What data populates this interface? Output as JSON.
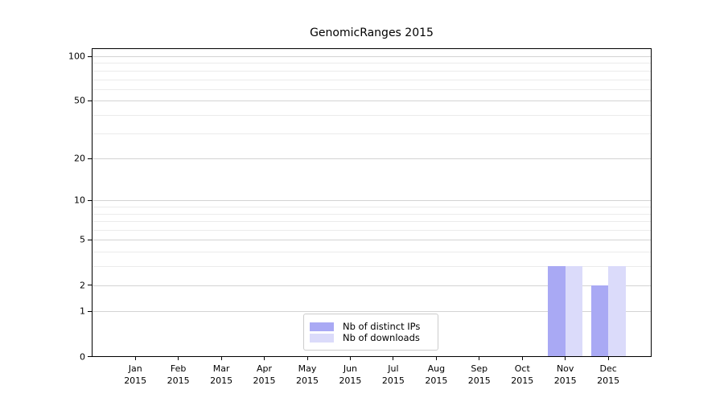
{
  "chart_data": {
    "type": "bar",
    "title": "GenomicRanges 2015",
    "x_months": [
      "Jan",
      "Feb",
      "Mar",
      "Apr",
      "May",
      "Jun",
      "Jul",
      "Aug",
      "Sep",
      "Oct",
      "Nov",
      "Dec"
    ],
    "x_year": "2015",
    "series": [
      {
        "name": "Nb of distinct IPs",
        "color": "#a9a9f4",
        "values": [
          0,
          0,
          0,
          0,
          0,
          0,
          0,
          0,
          0,
          0,
          3,
          2
        ]
      },
      {
        "name": "Nb of downloads",
        "color": "#dbdbfa",
        "values": [
          0,
          0,
          0,
          0,
          0,
          0,
          0,
          0,
          0,
          0,
          3,
          3
        ]
      }
    ],
    "yscale": "log1p",
    "ylabel": "",
    "xlabel": "",
    "ytick_values": [
      0,
      1,
      2,
      5,
      10,
      20,
      50,
      100
    ],
    "ytick_labels": [
      "0",
      "1",
      "2",
      "5",
      "10",
      "20",
      "50",
      "100"
    ],
    "minor_gridline_values": [
      3,
      4,
      6,
      7,
      8,
      9,
      30,
      40,
      60,
      70,
      80,
      90
    ],
    "grid": true,
    "legend_entries": [
      "Nb of distinct IPs",
      "Nb of downloads"
    ],
    "legend_position": "lower center inside plot",
    "colors": {
      "distinct_ips_bar": "#a9a9f4",
      "downloads_bar": "#dbdbfa",
      "major_gridline": "#d3d3d3",
      "minor_gridline": "#ebebeb",
      "axis": "#000000",
      "legend_border": "#cccccc"
    }
  }
}
